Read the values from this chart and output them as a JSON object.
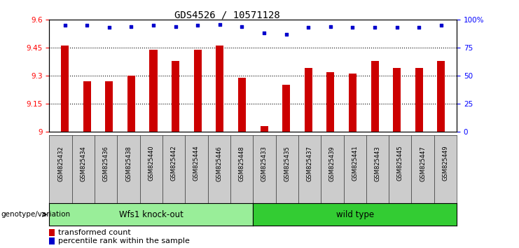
{
  "title": "GDS4526 / 10571128",
  "samples": [
    "GSM825432",
    "GSM825434",
    "GSM825436",
    "GSM825438",
    "GSM825440",
    "GSM825442",
    "GSM825444",
    "GSM825446",
    "GSM825448",
    "GSM825433",
    "GSM825435",
    "GSM825437",
    "GSM825439",
    "GSM825441",
    "GSM825443",
    "GSM825445",
    "GSM825447",
    "GSM825449"
  ],
  "bar_values": [
    9.46,
    9.27,
    9.27,
    9.3,
    9.44,
    9.38,
    9.44,
    9.46,
    9.29,
    9.03,
    9.25,
    9.34,
    9.32,
    9.31,
    9.38,
    9.34,
    9.34,
    9.38
  ],
  "percentile_values": [
    95,
    95,
    93,
    94,
    95,
    94,
    95,
    96,
    94,
    88,
    87,
    93,
    94,
    93,
    93,
    93,
    93,
    95
  ],
  "bar_color": "#cc0000",
  "percentile_color": "#0000cc",
  "ylim_left": [
    9.0,
    9.6
  ],
  "ylim_right": [
    0,
    100
  ],
  "yticks_left": [
    9.0,
    9.15,
    9.3,
    9.45,
    9.6
  ],
  "ytick_labels_left": [
    "9",
    "9.15",
    "9.3",
    "9.45",
    "9.6"
  ],
  "yticks_right": [
    0,
    25,
    50,
    75,
    100
  ],
  "ytick_labels_right": [
    "0",
    "25",
    "50",
    "75",
    "100%"
  ],
  "grid_values": [
    9.15,
    9.3,
    9.45
  ],
  "group1_label": "Wfs1 knock-out",
  "group2_label": "wild type",
  "group1_count": 9,
  "group2_count": 9,
  "group1_color": "#99ee99",
  "group2_color": "#33cc33",
  "genotype_label": "genotype/variation",
  "legend_bar_label": "transformed count",
  "legend_dot_label": "percentile rank within the sample",
  "background_color": "#ffffff",
  "tick_bg_color": "#cccccc",
  "title_fontsize": 10,
  "tick_fontsize": 7.5
}
